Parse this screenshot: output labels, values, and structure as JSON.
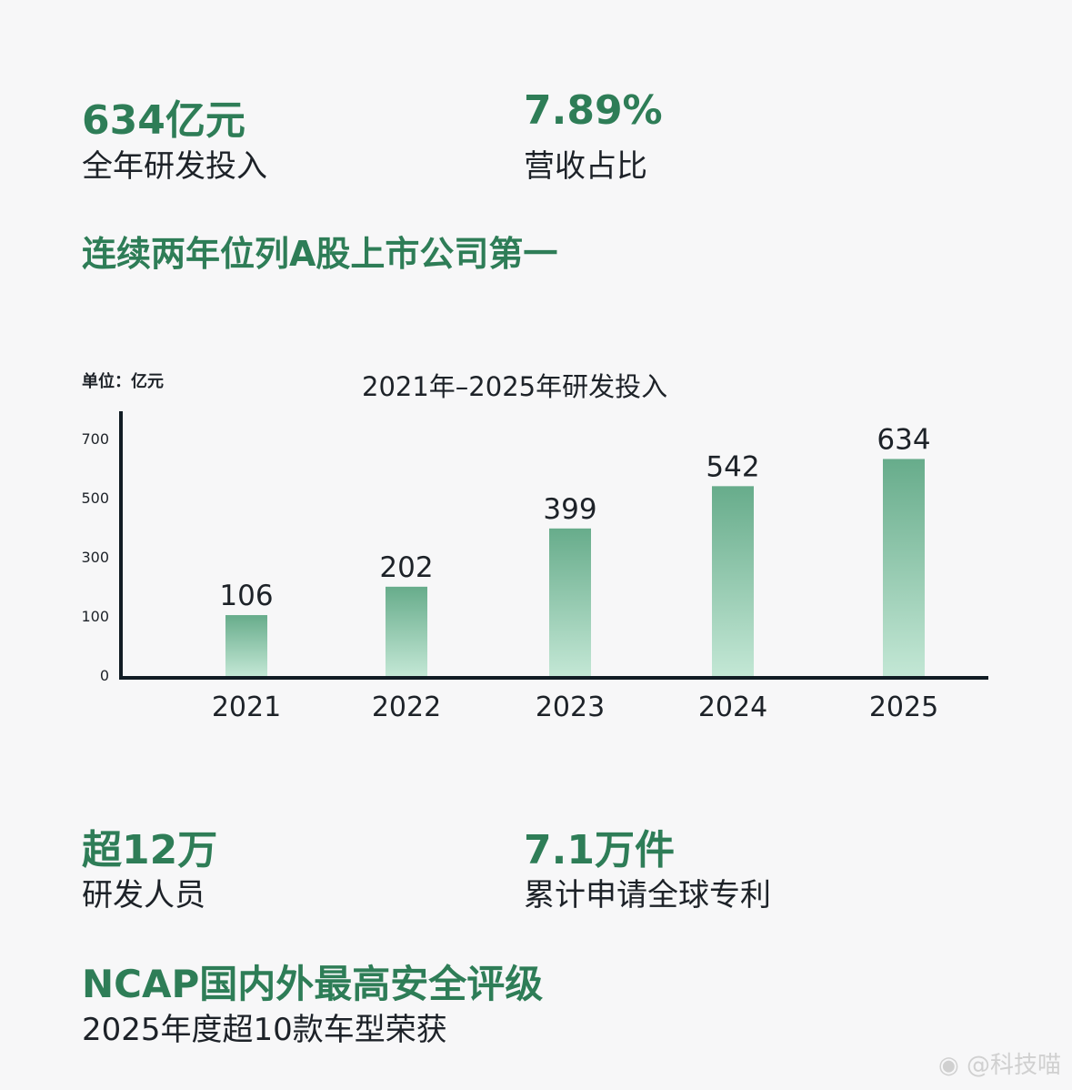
{
  "stats_top": [
    {
      "value": "634亿元",
      "label": "全年研发投入"
    },
    {
      "value": "7.89%",
      "label": "营收占比"
    }
  ],
  "headline1": "连续两年位列A股上市公司第一",
  "stats_bottom": [
    {
      "value": "超12万",
      "label": "研发人员"
    },
    {
      "value": "7.1万件",
      "label": "累计申请全球专利"
    }
  ],
  "headline2": "NCAP国内外最高安全评级",
  "headline2_sub": "2025年度超10款车型荣获",
  "watermark": "@科技喵",
  "colors": {
    "accent": "#2e7d57",
    "bar_top": "#67ac8b",
    "bar_bottom": "#c3e7d5",
    "axis": "#111c24"
  },
  "chart_data": {
    "type": "bar",
    "title": "2021年–2025年研发投入",
    "unit_label": "单位：亿元",
    "categories": [
      "2021",
      "2022",
      "2023",
      "2024",
      "2025"
    ],
    "values": [
      106,
      202,
      399,
      542,
      634
    ],
    "data_labels": [
      "106",
      "202",
      "399",
      "542",
      "634"
    ],
    "y_ticks": [
      0,
      100,
      300,
      500,
      700
    ],
    "y_tick_labels": [
      "0",
      "100",
      "300",
      "500",
      "700"
    ],
    "ylim": [
      0,
      700
    ],
    "grid": false,
    "legend": "none"
  }
}
